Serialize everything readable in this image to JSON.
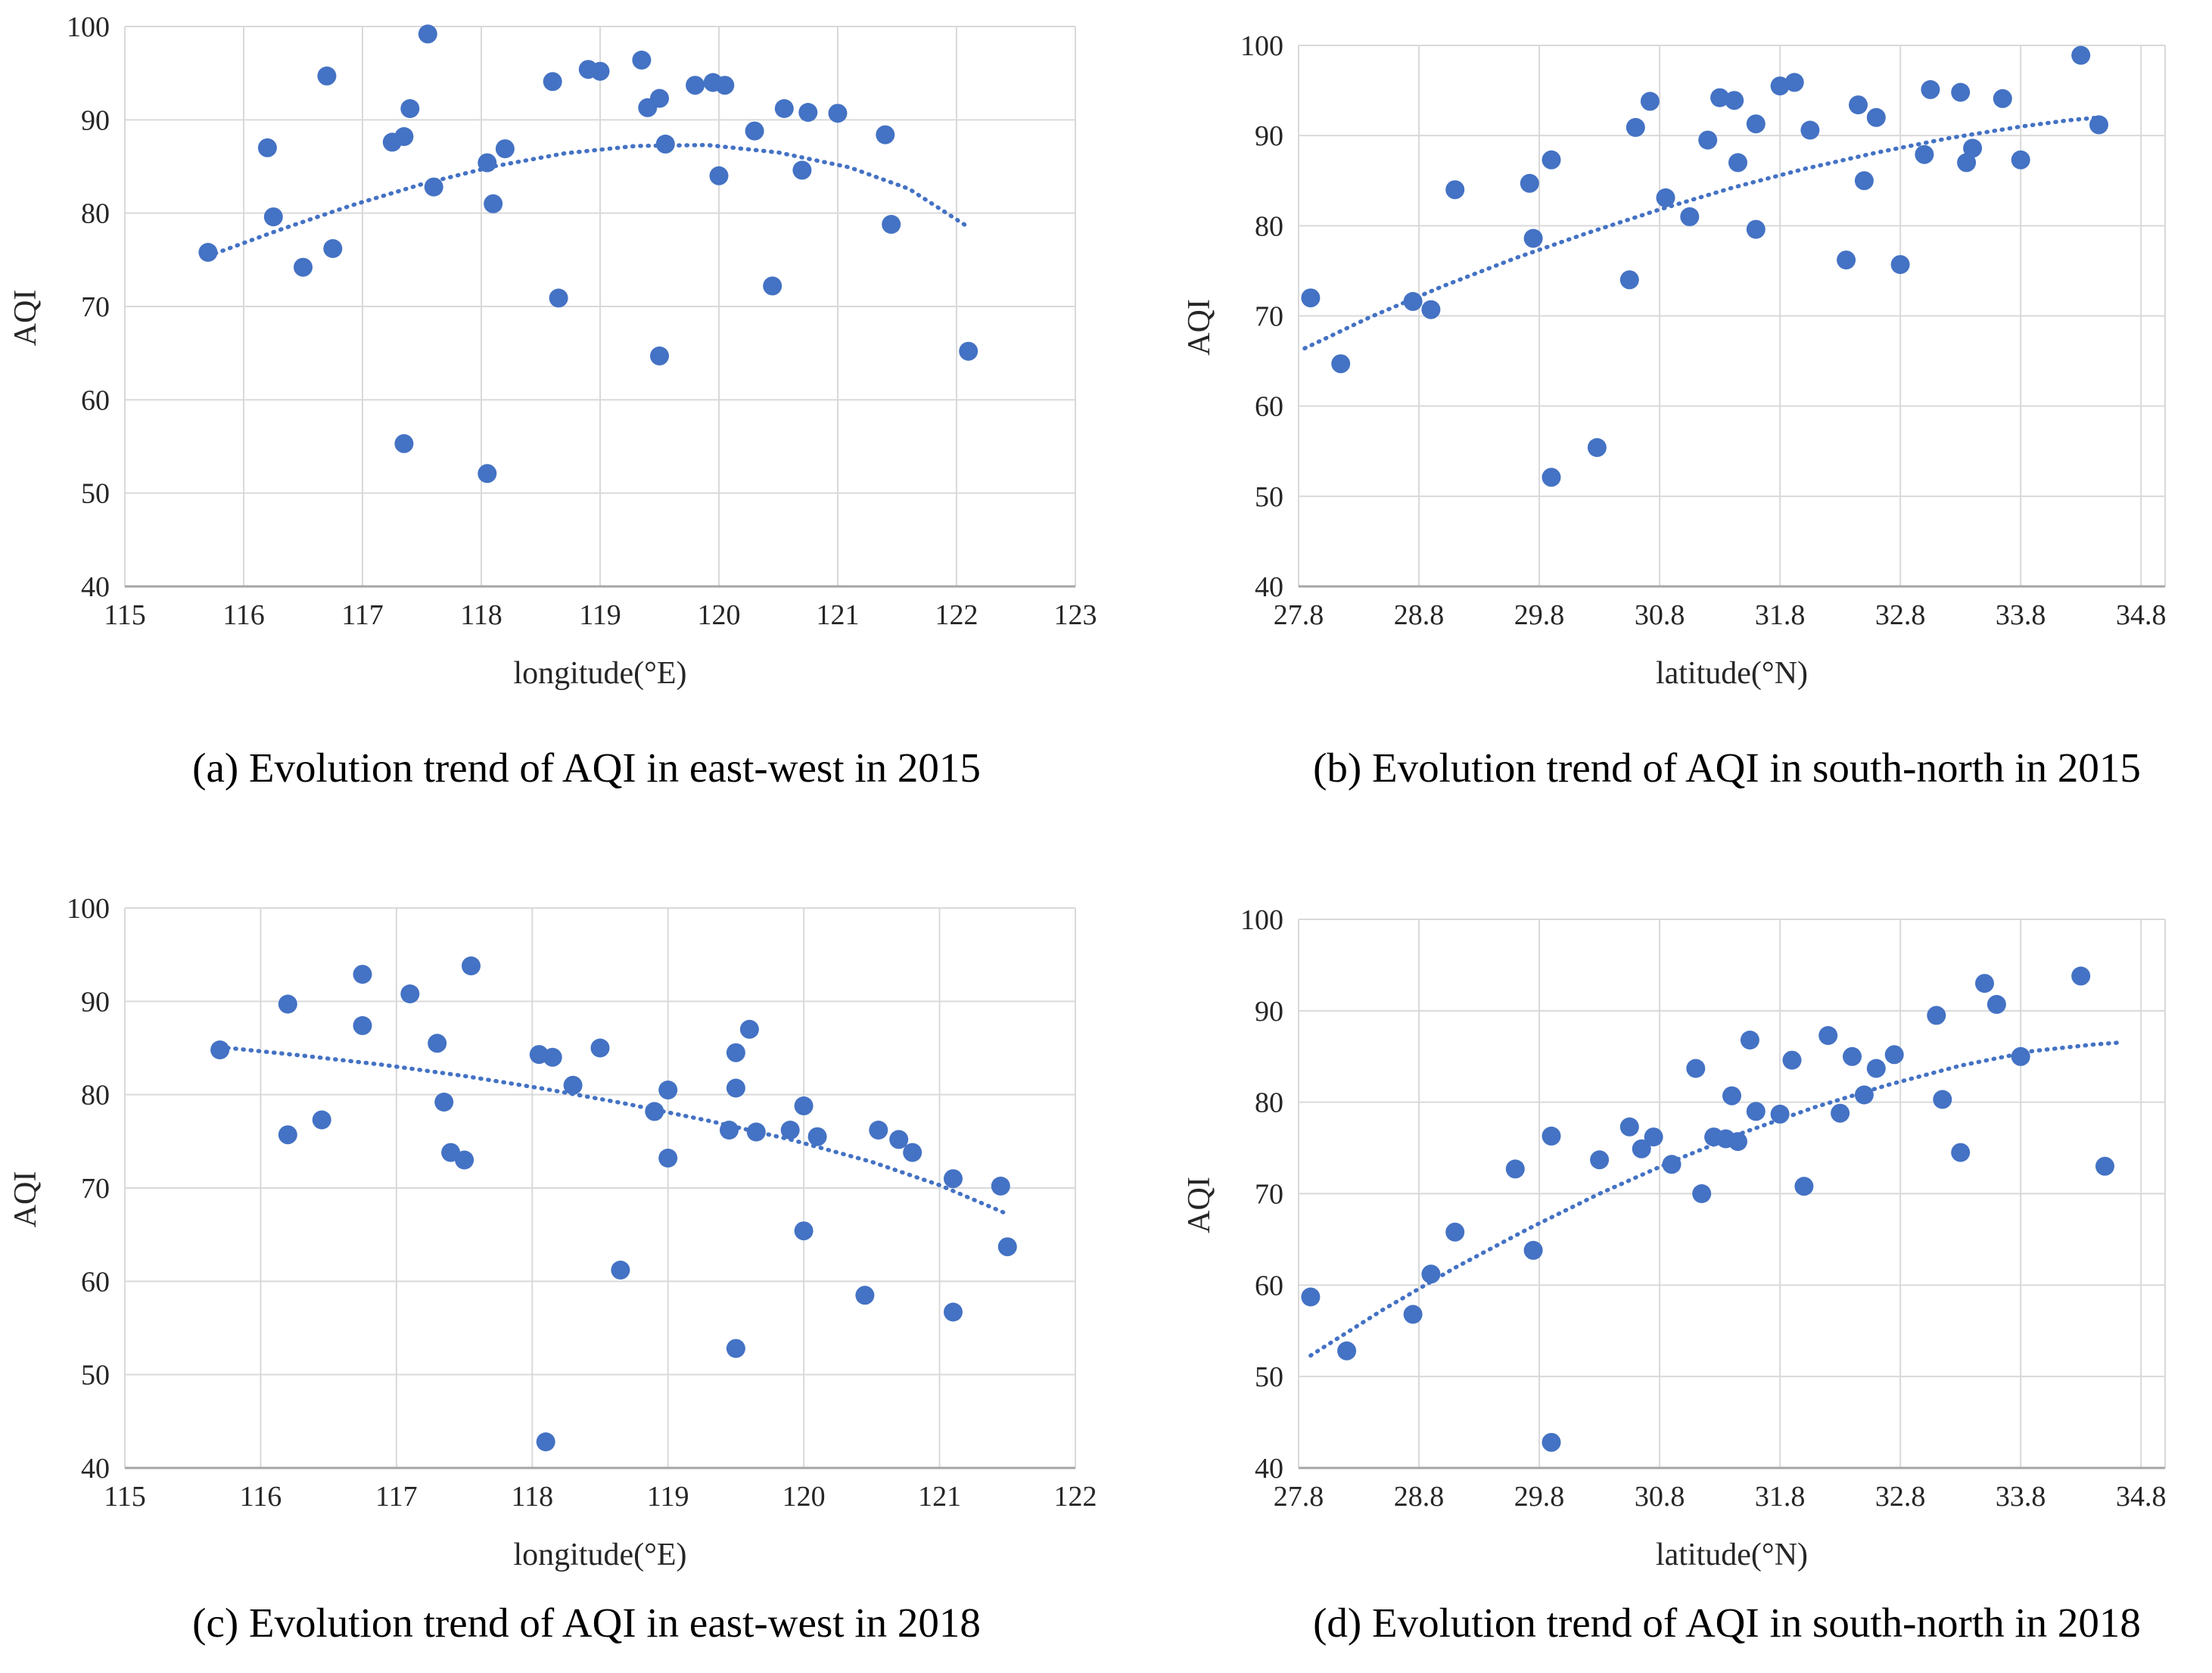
{
  "theme": {
    "background": "#FFFFFF",
    "dot_color": "#4472C4",
    "trend_color": "#4472C4",
    "grid_color": "#D9D9D9",
    "axis_line_color": "#A6A6A6",
    "tick_text_color": "#262626",
    "caption_color": "#000000"
  },
  "chart_data": [
    {
      "id": "a",
      "type": "scatter",
      "caption": "(a) Evolution trend of AQI in east-west in 2015",
      "xlabel": "longitude(°E)",
      "ylabel": "AQI",
      "xlim": [
        115,
        123
      ],
      "ylim": [
        40,
        100
      ],
      "x_ticks": [
        "115",
        "116",
        "117",
        "118",
        "119",
        "120",
        "121",
        "122",
        "123"
      ],
      "y_ticks": [
        "40",
        "50",
        "60",
        "70",
        "80",
        "90",
        "100"
      ],
      "grid": true,
      "legend": "none",
      "trend_style": "dotted",
      "points": [
        [
          115.7,
          75.8
        ],
        [
          116.2,
          87.0
        ],
        [
          116.25,
          79.6
        ],
        [
          116.5,
          74.2
        ],
        [
          116.7,
          94.7
        ],
        [
          116.75,
          76.2
        ],
        [
          117.25,
          87.6
        ],
        [
          117.35,
          88.2
        ],
        [
          117.4,
          91.2
        ],
        [
          117.35,
          55.3
        ],
        [
          117.55,
          99.2
        ],
        [
          117.6,
          82.8
        ],
        [
          118.05,
          85.4
        ],
        [
          118.1,
          81.0
        ],
        [
          118.05,
          52.1
        ],
        [
          118.2,
          86.9
        ],
        [
          118.6,
          94.1
        ],
        [
          118.65,
          70.9
        ],
        [
          118.9,
          95.4
        ],
        [
          119.0,
          95.2
        ],
        [
          119.35,
          96.4
        ],
        [
          119.4,
          91.3
        ],
        [
          119.5,
          92.3
        ],
        [
          119.55,
          87.4
        ],
        [
          119.5,
          64.7
        ],
        [
          119.8,
          93.7
        ],
        [
          119.95,
          94.0
        ],
        [
          120.05,
          93.7
        ],
        [
          120.0,
          84.0
        ],
        [
          120.3,
          88.8
        ],
        [
          120.45,
          72.2
        ],
        [
          120.55,
          91.2
        ],
        [
          120.7,
          84.6
        ],
        [
          120.75,
          90.8
        ],
        [
          121.0,
          90.7
        ],
        [
          121.4,
          88.4
        ],
        [
          121.45,
          78.8
        ],
        [
          122.1,
          65.2
        ]
      ],
      "trend": [
        [
          115.7,
          75.4
        ],
        [
          116.3,
          78.2
        ],
        [
          116.9,
          80.8
        ],
        [
          117.5,
          83.1
        ],
        [
          118.1,
          85.0
        ],
        [
          118.7,
          86.4
        ],
        [
          119.3,
          87.2
        ],
        [
          119.9,
          87.3
        ],
        [
          120.5,
          86.5
        ],
        [
          121.1,
          84.9
        ],
        [
          121.6,
          82.6
        ],
        [
          122.1,
          78.5
        ]
      ]
    },
    {
      "id": "b",
      "type": "scatter",
      "caption": "(b) Evolution trend of AQI in south-north in 2015",
      "xlabel": "latitude(°N)",
      "ylabel": "AQI",
      "xlim": [
        27.8,
        35.0
      ],
      "ylim": [
        40,
        100
      ],
      "x_ticks": [
        "27.8",
        "28.8",
        "29.8",
        "30.8",
        "31.8",
        "32.8",
        "33.8",
        "34.8"
      ],
      "y_ticks": [
        "40",
        "50",
        "60",
        "70",
        "80",
        "90",
        "100"
      ],
      "grid": true,
      "legend": "none",
      "trend_style": "dotted",
      "points": [
        [
          27.9,
          72.0
        ],
        [
          28.15,
          64.7
        ],
        [
          28.75,
          71.6
        ],
        [
          28.9,
          70.7
        ],
        [
          29.1,
          84.0
        ],
        [
          29.72,
          84.7
        ],
        [
          29.75,
          78.6
        ],
        [
          29.9,
          87.3
        ],
        [
          29.9,
          52.1
        ],
        [
          30.28,
          55.4
        ],
        [
          30.55,
          74.0
        ],
        [
          30.6,
          90.9
        ],
        [
          30.72,
          93.8
        ],
        [
          30.85,
          83.1
        ],
        [
          31.05,
          81.0
        ],
        [
          31.2,
          89.5
        ],
        [
          31.3,
          94.2
        ],
        [
          31.42,
          93.9
        ],
        [
          31.45,
          87.0
        ],
        [
          31.6,
          91.3
        ],
        [
          31.6,
          79.6
        ],
        [
          31.8,
          95.5
        ],
        [
          31.92,
          95.9
        ],
        [
          32.05,
          90.6
        ],
        [
          32.35,
          76.2
        ],
        [
          32.45,
          93.4
        ],
        [
          32.5,
          85.0
        ],
        [
          32.6,
          92.0
        ],
        [
          32.8,
          75.7
        ],
        [
          33.0,
          87.9
        ],
        [
          33.05,
          95.1
        ],
        [
          33.3,
          94.8
        ],
        [
          33.35,
          87.0
        ],
        [
          33.4,
          88.6
        ],
        [
          33.65,
          94.1
        ],
        [
          33.8,
          87.3
        ],
        [
          34.3,
          98.9
        ],
        [
          34.45,
          91.2
        ]
      ],
      "trend": [
        [
          27.85,
          66.4
        ],
        [
          28.4,
          69.9
        ],
        [
          29.0,
          73.3
        ],
        [
          29.6,
          76.4
        ],
        [
          30.2,
          79.2
        ],
        [
          30.8,
          81.8
        ],
        [
          31.4,
          84.2
        ],
        [
          32.0,
          86.3
        ],
        [
          32.6,
          88.1
        ],
        [
          33.2,
          89.7
        ],
        [
          33.8,
          91.0
        ],
        [
          34.2,
          91.7
        ],
        [
          34.45,
          92.0
        ]
      ]
    },
    {
      "id": "c",
      "type": "scatter",
      "caption": "(c) Evolution trend of AQI in east-west in 2018",
      "xlabel": "longitude(°E)",
      "ylabel": "AQI",
      "xlim": [
        115,
        122
      ],
      "ylim": [
        40,
        100
      ],
      "x_ticks": [
        "115",
        "116",
        "117",
        "118",
        "119",
        "120",
        "121",
        "122"
      ],
      "y_ticks": [
        "40",
        "50",
        "60",
        "70",
        "80",
        "90",
        "100"
      ],
      "grid": true,
      "legend": "none",
      "trend_style": "dotted",
      "points": [
        [
          115.7,
          84.8
        ],
        [
          116.2,
          89.7
        ],
        [
          116.2,
          75.7
        ],
        [
          116.45,
          77.3
        ],
        [
          116.75,
          92.9
        ],
        [
          116.75,
          87.4
        ],
        [
          117.1,
          90.8
        ],
        [
          117.3,
          85.5
        ],
        [
          117.35,
          79.2
        ],
        [
          117.4,
          73.8
        ],
        [
          117.55,
          93.8
        ],
        [
          117.5,
          73.0
        ],
        [
          118.05,
          84.3
        ],
        [
          118.15,
          84.0
        ],
        [
          118.1,
          42.8
        ],
        [
          118.3,
          81.0
        ],
        [
          118.5,
          85.0
        ],
        [
          118.65,
          61.2
        ],
        [
          118.9,
          78.2
        ],
        [
          119.0,
          80.5
        ],
        [
          119.0,
          73.2
        ],
        [
          119.45,
          76.2
        ],
        [
          119.5,
          84.5
        ],
        [
          119.5,
          80.7
        ],
        [
          119.5,
          52.8
        ],
        [
          119.6,
          87.0
        ],
        [
          119.65,
          76.0
        ],
        [
          119.9,
          76.2
        ],
        [
          120.0,
          78.8
        ],
        [
          120.0,
          65.4
        ],
        [
          120.1,
          75.5
        ],
        [
          120.45,
          58.5
        ],
        [
          120.55,
          76.2
        ],
        [
          120.7,
          75.2
        ],
        [
          120.8,
          73.8
        ],
        [
          121.1,
          71.0
        ],
        [
          121.1,
          56.7
        ],
        [
          121.45,
          70.2
        ],
        [
          121.5,
          63.7
        ]
      ],
      "trend": [
        [
          115.7,
          85.1
        ],
        [
          116.3,
          84.2
        ],
        [
          116.9,
          83.2
        ],
        [
          117.5,
          82.0
        ],
        [
          118.1,
          80.6
        ],
        [
          118.7,
          79.0
        ],
        [
          119.3,
          77.2
        ],
        [
          119.9,
          75.2
        ],
        [
          120.5,
          72.8
        ],
        [
          121.0,
          70.3
        ],
        [
          121.5,
          67.2
        ]
      ]
    },
    {
      "id": "d",
      "type": "scatter",
      "caption": "(d) Evolution trend of AQI in south-north in 2018",
      "xlabel": "latitude(°N)",
      "ylabel": "AQI",
      "xlim": [
        27.8,
        35.0
      ],
      "ylim": [
        40,
        100
      ],
      "x_ticks": [
        "27.8",
        "28.8",
        "29.8",
        "30.8",
        "31.8",
        "32.8",
        "33.8",
        "34.8"
      ],
      "y_ticks": [
        "40",
        "50",
        "60",
        "70",
        "80",
        "90",
        "100"
      ],
      "grid": true,
      "legend": "none",
      "trend_style": "dotted",
      "points": [
        [
          27.9,
          58.7
        ],
        [
          28.2,
          52.8
        ],
        [
          28.75,
          56.8
        ],
        [
          28.9,
          61.2
        ],
        [
          29.1,
          65.8
        ],
        [
          29.6,
          72.7
        ],
        [
          29.75,
          63.8
        ],
        [
          29.9,
          76.3
        ],
        [
          29.9,
          42.8
        ],
        [
          30.3,
          73.7
        ],
        [
          30.55,
          77.3
        ],
        [
          30.65,
          74.9
        ],
        [
          30.75,
          76.2
        ],
        [
          30.9,
          73.2
        ],
        [
          31.1,
          83.7
        ],
        [
          31.15,
          70.0
        ],
        [
          31.25,
          76.2
        ],
        [
          31.35,
          76.0
        ],
        [
          31.4,
          80.7
        ],
        [
          31.45,
          75.7
        ],
        [
          31.55,
          86.8
        ],
        [
          31.6,
          79.0
        ],
        [
          31.8,
          78.7
        ],
        [
          31.9,
          84.6
        ],
        [
          32.0,
          70.8
        ],
        [
          32.2,
          87.3
        ],
        [
          32.3,
          78.8
        ],
        [
          32.4,
          85.0
        ],
        [
          32.5,
          80.8
        ],
        [
          32.6,
          83.7
        ],
        [
          32.75,
          85.2
        ],
        [
          33.1,
          89.5
        ],
        [
          33.15,
          80.3
        ],
        [
          33.3,
          74.5
        ],
        [
          33.5,
          93.0
        ],
        [
          33.6,
          90.7
        ],
        [
          33.8,
          85.0
        ],
        [
          34.3,
          93.8
        ],
        [
          34.5,
          73.0
        ]
      ],
      "trend": [
        [
          27.9,
          52.3
        ],
        [
          28.5,
          57.3
        ],
        [
          29.1,
          61.9
        ],
        [
          29.7,
          66.1
        ],
        [
          30.3,
          70.0
        ],
        [
          30.9,
          73.5
        ],
        [
          31.5,
          76.7
        ],
        [
          32.1,
          79.5
        ],
        [
          32.7,
          81.9
        ],
        [
          33.3,
          84.0
        ],
        [
          33.9,
          85.6
        ],
        [
          34.4,
          86.3
        ],
        [
          34.6,
          86.5
        ]
      ]
    }
  ]
}
